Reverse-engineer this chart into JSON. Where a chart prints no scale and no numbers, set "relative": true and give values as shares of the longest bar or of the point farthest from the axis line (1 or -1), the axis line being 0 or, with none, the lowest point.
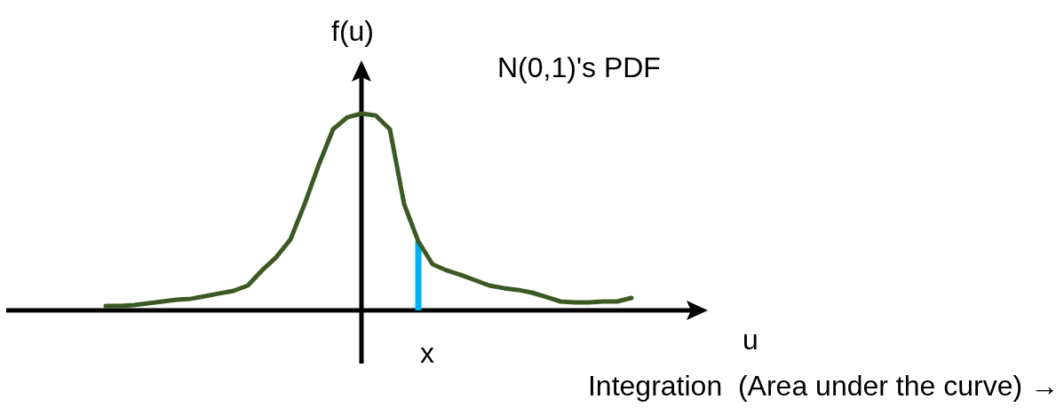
{
  "chart_data": {
    "type": "line",
    "relative": true,
    "title": "N(0,1)'s PDF",
    "xlabel": "u",
    "ylabel": "f(u)",
    "annotations": [
      "Integration  (Area under the curve) →",
      "x"
    ],
    "categories": [
      null,
      null,
      null,
      null,
      null,
      null,
      null,
      null,
      null,
      null,
      null,
      null,
      null,
      null,
      null,
      null,
      null,
      null,
      null,
      null,
      null,
      null,
      null,
      null,
      null,
      null,
      null,
      null,
      null,
      null,
      null,
      null,
      null,
      null,
      null,
      null,
      null,
      null
    ],
    "series": [
      {
        "color": "#3b5a23",
        "values": [
          0.023,
          0.023,
          0.027,
          0.036,
          0.045,
          0.054,
          0.059,
          0.072,
          0.086,
          0.099,
          0.126,
          0.203,
          0.27,
          0.36,
          0.54,
          0.74,
          0.92,
          0.98,
          1.0,
          0.99,
          0.92,
          0.54,
          0.35,
          0.234,
          0.203,
          0.18,
          0.153,
          0.126,
          0.113,
          0.104,
          0.09,
          0.068,
          0.045,
          0.041,
          0.041,
          0.045,
          0.045,
          0.063
        ]
      }
    ],
    "marker": "none",
    "line_style": "solid"
  }
}
